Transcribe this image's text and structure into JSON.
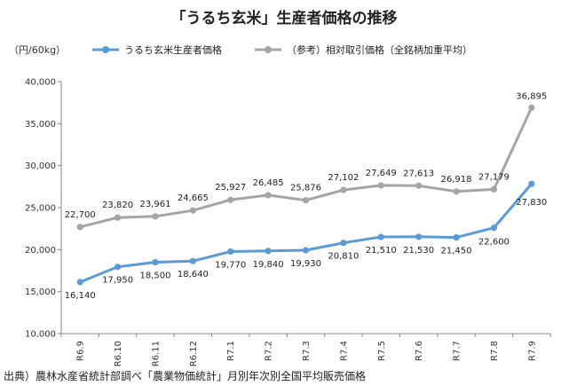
{
  "chart_data": {
    "type": "line",
    "title": "「うるち玄米」生産者価格の推移",
    "unit": "（円/60kg）",
    "categories": [
      "R6.9",
      "R6.10",
      "R6.11",
      "R6.12",
      "R7.1",
      "R7.2",
      "R7.3",
      "R7.4",
      "R7.5",
      "R7.6",
      "R7.7",
      "R7.8",
      "R7.9"
    ],
    "ylim": [
      10000,
      40000
    ],
    "yticks": [
      "10,000",
      "15,000",
      "20,000",
      "25,000",
      "30,000",
      "35,000",
      "40,000"
    ],
    "grid": false,
    "legend_position": "top",
    "series": [
      {
        "name": "うるち玄米生産者価格",
        "color": "#5b9bd5",
        "values": [
          16140,
          17950,
          18500,
          18640,
          19770,
          19840,
          19930,
          20810,
          21510,
          21530,
          21450,
          22600,
          27830
        ],
        "labels": [
          "16,140",
          "17,950",
          "18,500",
          "18,640",
          "19,770",
          "19,840",
          "19,930",
          "20,810",
          "21,510",
          "21,530",
          "21,450",
          "22,600",
          "27,830"
        ]
      },
      {
        "name": "（参考）相対取引価格（全銘柄加重平均）",
        "color": "#a5a5a5",
        "values": [
          22700,
          23820,
          23961,
          24665,
          25927,
          26485,
          25876,
          27102,
          27649,
          27613,
          26918,
          27179,
          36895
        ],
        "labels": [
          "22,700",
          "23,820",
          "23,961",
          "24,665",
          "25,927",
          "26,485",
          "25,876",
          "27,102",
          "27,649",
          "27,613",
          "26,918",
          "27,179",
          "36,895"
        ]
      }
    ],
    "source": "出典）農林水産省統計部調べ「農業物価統計」月別年次別全国平均販売価格"
  }
}
